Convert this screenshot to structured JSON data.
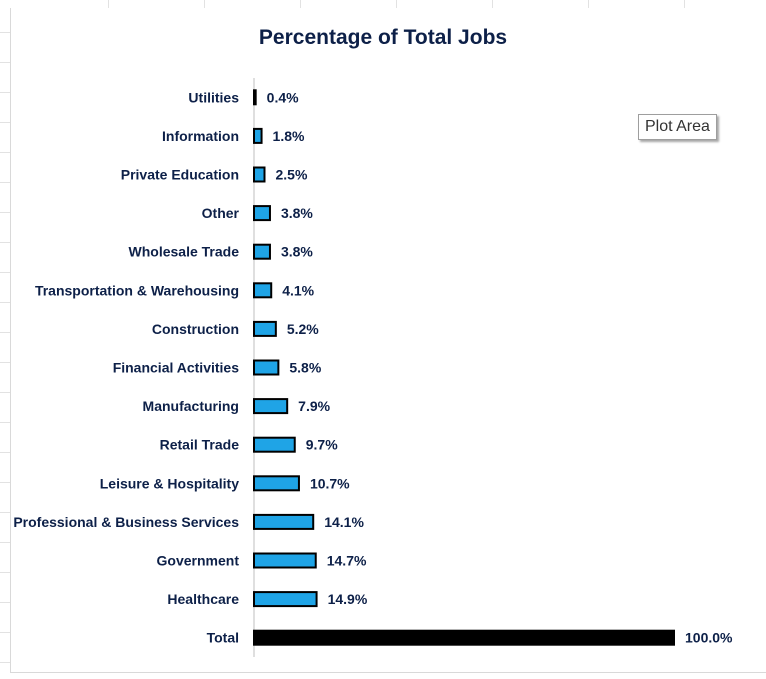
{
  "chart_data": {
    "type": "bar",
    "orientation": "horizontal",
    "title": "Percentage of Total Jobs",
    "categories": [
      "Utilities",
      "Information",
      "Private Education",
      "Other",
      "Wholesale Trade",
      "Transportation & Warehousing",
      "Construction",
      "Financial Activities",
      "Manufacturing",
      "Retail Trade",
      "Leisure & Hospitality",
      "Professional & Business Services",
      "Government",
      "Healthcare",
      "Total"
    ],
    "values": [
      0.4,
      1.8,
      2.5,
      3.8,
      3.8,
      4.1,
      5.2,
      5.8,
      7.9,
      9.7,
      10.7,
      14.1,
      14.7,
      14.9,
      100.0
    ],
    "data_labels": [
      "0.4%",
      "1.8%",
      "2.5%",
      "3.8%",
      "3.8%",
      "4.1%",
      "5.2%",
      "5.8%",
      "7.9%",
      "9.7%",
      "10.7%",
      "14.1%",
      "14.7%",
      "14.9%",
      "100.0%"
    ],
    "xlim": [
      0,
      100
    ],
    "xlabel": "",
    "ylabel": "",
    "grid": false,
    "legend": "none",
    "colors": {
      "bar": "#1fa4e6",
      "total": "#000000",
      "bar_edge": "#000000",
      "label": "#0d2048"
    }
  },
  "tooltip": {
    "text": "Plot Area"
  }
}
